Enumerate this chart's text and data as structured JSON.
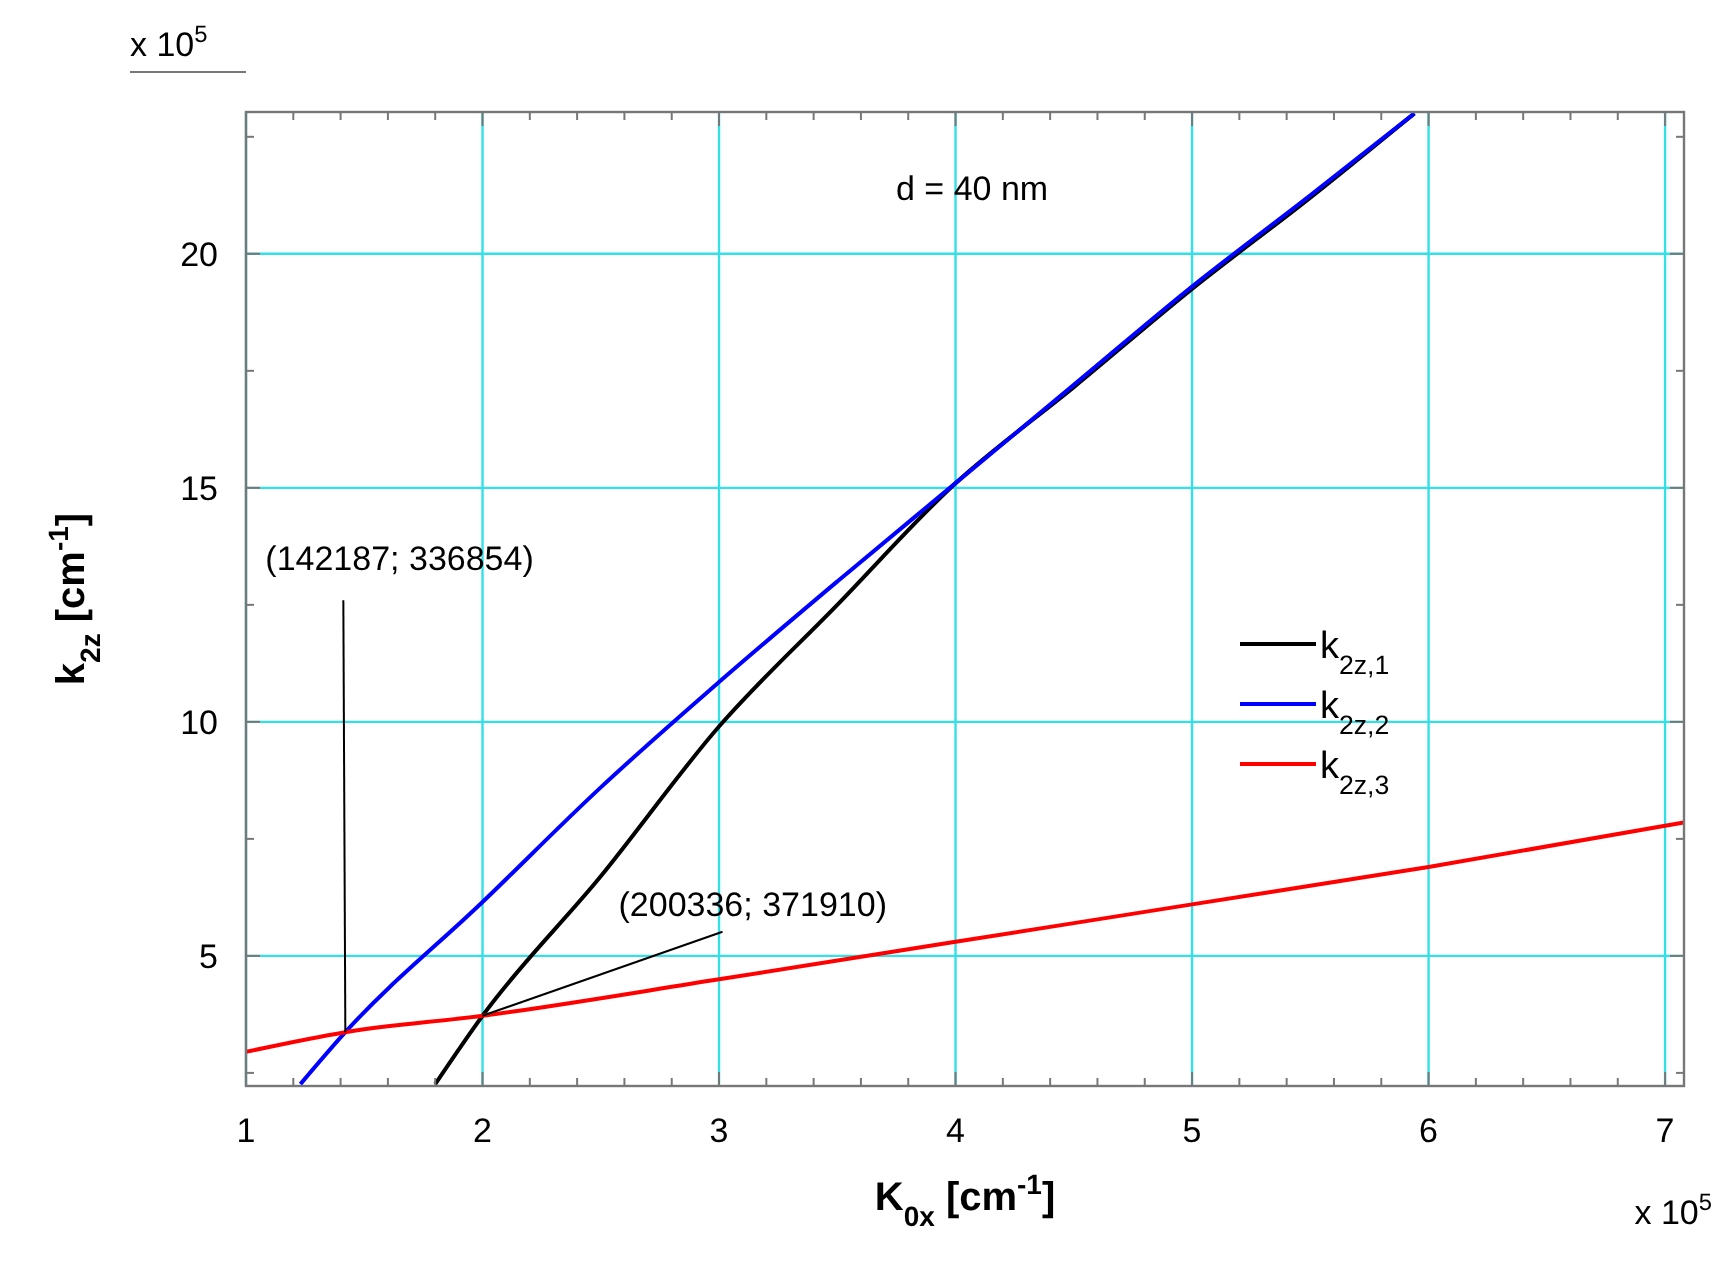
{
  "chart_data": {
    "type": "line",
    "xlabel": "K$_{0x}$  [cm$^{-1}$]",
    "ylabel": "k$_{2z}$  [cm$^{-1}$]",
    "xlim": [
      1,
      7.08
    ],
    "ylim": [
      2.22,
      23.03
    ],
    "xticks": [
      1,
      {
        "value": 1.2,
        "label": null
      },
      {
        "value": 1.4,
        "label": null
      },
      {
        "value": 1.6,
        "label": null
      },
      {
        "value": 1.8,
        "label": null
      },
      2,
      {
        "value": 2.2,
        "label": null
      },
      {
        "value": 2.4,
        "label": null
      },
      {
        "value": 2.6,
        "label": null
      },
      {
        "value": 2.8,
        "label": null
      },
      3,
      {
        "value": 3.2,
        "label": null
      },
      {
        "value": 3.4,
        "label": null
      },
      {
        "value": 3.6,
        "label": null
      },
      {
        "value": 3.8,
        "label": null
      },
      4,
      {
        "value": 4.2,
        "label": null
      },
      {
        "value": 4.4,
        "label": null
      },
      {
        "value": 4.6,
        "label": null
      },
      {
        "value": 4.8,
        "label": null
      },
      5,
      {
        "value": 5.2,
        "label": null
      },
      {
        "value": 5.4,
        "label": null
      },
      {
        "value": 5.6,
        "label": null
      },
      {
        "value": 5.8,
        "label": null
      },
      6,
      {
        "value": 6.2,
        "label": null
      },
      {
        "value": 6.4,
        "label": null
      },
      {
        "value": 6.6,
        "label": null
      },
      {
        "value": 6.8,
        "label": null
      },
      7
    ],
    "yticks": [
      {
        "value": 2.5,
        "label": null
      },
      5,
      {
        "value": 7.5,
        "label": null
      },
      10,
      {
        "value": 12.5,
        "label": null
      },
      15,
      {
        "value": 17.5,
        "label": null
      },
      20,
      {
        "value": 22.5,
        "label": null
      }
    ],
    "grid": true,
    "legend": "right",
    "series": [
      {
        "name": "k$_{2z,1}$",
        "color": "#000000",
        "x": [
          1.8,
          2.0,
          2.5,
          3.0,
          3.5,
          4.0,
          4.5,
          5.0,
          5.5,
          5.94
        ],
        "values": [
          2.26,
          3.72,
          6.7,
          9.9,
          12.5,
          15.1,
          17.15,
          19.25,
          21.2,
          23.0
        ]
      },
      {
        "name": "k$_{2z,2}$",
        "color": "#0000ff",
        "x": [
          1.23,
          1.42,
          2.0,
          2.5,
          3.0,
          3.5,
          4.0,
          4.5,
          5.0,
          5.5,
          5.94
        ],
        "values": [
          2.26,
          3.37,
          6.15,
          8.6,
          10.85,
          13.0,
          15.1,
          17.2,
          19.3,
          21.25,
          23.0
        ]
      },
      {
        "name": "k$_{2z,3}$",
        "color": "#ff0000",
        "x": [
          1.0,
          1.42,
          2.0,
          3.0,
          4.0,
          5.0,
          6.0,
          7.08
        ],
        "values": [
          2.95,
          3.37,
          3.72,
          4.5,
          5.3,
          6.1,
          6.9,
          7.85
        ]
      }
    ],
    "annotations": [
      {
        "text": "(142187; 336854)",
        "x": 1.42,
        "y": 3.37
      },
      {
        "text": "(200336; 371910)",
        "x": 2.0,
        "y": 3.72
      },
      "d = 40 nm",
      "x 10$^{5}$",
      "x 10$^{5}$"
    ]
  }
}
